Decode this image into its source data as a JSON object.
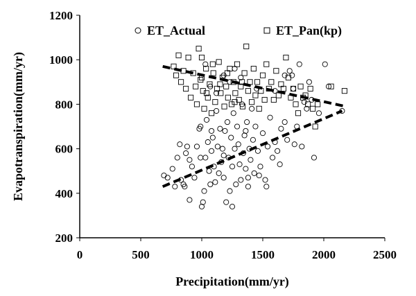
{
  "chart_data": {
    "type": "scatter",
    "title": "",
    "xlabel": "Precipitation(mm/yr)",
    "ylabel": "Evapotranspiration(mm/yr)",
    "xlim": [
      0,
      2500
    ],
    "ylim": [
      200,
      1200
    ],
    "x_ticks": [
      "0",
      "500",
      "1000",
      "1500",
      "2000",
      "2500"
    ],
    "y_ticks": [
      "200",
      "400",
      "600",
      "800",
      "1000",
      "1200"
    ],
    "grid": false,
    "legend_position": "top",
    "series": [
      {
        "name": "ET_Actual",
        "marker": "circle",
        "trendline": [
          [
            680,
            430
          ],
          [
            2150,
            770
          ]
        ],
        "points": [
          [
            690,
            480
          ],
          [
            720,
            470
          ],
          [
            760,
            510
          ],
          [
            780,
            430
          ],
          [
            800,
            560
          ],
          [
            820,
            620
          ],
          [
            830,
            460
          ],
          [
            850,
            440
          ],
          [
            860,
            430
          ],
          [
            870,
            580
          ],
          [
            880,
            610
          ],
          [
            900,
            550
          ],
          [
            920,
            520
          ],
          [
            940,
            470
          ],
          [
            960,
            610
          ],
          [
            980,
            690
          ],
          [
            990,
            700
          ],
          [
            1000,
            340
          ],
          [
            1010,
            360
          ],
          [
            1020,
            410
          ],
          [
            1030,
            560
          ],
          [
            1040,
            730
          ],
          [
            1050,
            630
          ],
          [
            1060,
            500
          ],
          [
            1070,
            440
          ],
          [
            1080,
            590
          ],
          [
            1090,
            650
          ],
          [
            1100,
            520
          ],
          [
            1110,
            450
          ],
          [
            1120,
            770
          ],
          [
            1130,
            610
          ],
          [
            1140,
            490
          ],
          [
            1150,
            690
          ],
          [
            1160,
            540
          ],
          [
            1170,
            600
          ],
          [
            1180,
            470
          ],
          [
            1190,
            680
          ],
          [
            1200,
            360
          ],
          [
            1210,
            720
          ],
          [
            1220,
            560
          ],
          [
            1230,
            410
          ],
          [
            1240,
            650
          ],
          [
            1250,
            520
          ],
          [
            1260,
            760
          ],
          [
            1270,
            600
          ],
          [
            1280,
            440
          ],
          [
            1290,
            700
          ],
          [
            1300,
            620
          ],
          [
            1310,
            530
          ],
          [
            1320,
            460
          ],
          [
            1330,
            800
          ],
          [
            1340,
            580
          ],
          [
            1350,
            660
          ],
          [
            1360,
            510
          ],
          [
            1370,
            720
          ],
          [
            1380,
            470
          ],
          [
            1390,
            600
          ],
          [
            1400,
            550
          ],
          [
            1410,
            780
          ],
          [
            1420,
            640
          ],
          [
            1430,
            490
          ],
          [
            1440,
            700
          ],
          [
            1460,
            590
          ],
          [
            1480,
            520
          ],
          [
            1500,
            670
          ],
          [
            1520,
            460
          ],
          [
            1540,
            610
          ],
          [
            1560,
            740
          ],
          [
            1580,
            560
          ],
          [
            1600,
            630
          ],
          [
            1620,
            590
          ],
          [
            1650,
            690
          ],
          [
            1680,
            720
          ],
          [
            1700,
            640
          ],
          [
            1720,
            950
          ],
          [
            1740,
            930
          ],
          [
            1760,
            620
          ],
          [
            1780,
            700
          ],
          [
            1800,
            980
          ],
          [
            1820,
            610
          ],
          [
            1840,
            810
          ],
          [
            1860,
            780
          ],
          [
            1880,
            900
          ],
          [
            1900,
            820
          ],
          [
            1920,
            560
          ],
          [
            1960,
            760
          ],
          [
            2010,
            980
          ],
          [
            2040,
            880
          ],
          [
            2150,
            770
          ],
          [
            1030,
            980
          ],
          [
            1070,
            880
          ],
          [
            1120,
            850
          ],
          [
            1180,
            930
          ],
          [
            1230,
            900
          ],
          [
            1270,
            960
          ],
          [
            1320,
            920
          ],
          [
            1450,
            870
          ],
          [
            1600,
            860
          ],
          [
            1680,
            930
          ],
          [
            1750,
            870
          ],
          [
            900,
            370
          ],
          [
            1250,
            340
          ],
          [
            1380,
            430
          ],
          [
            1470,
            480
          ],
          [
            1530,
            430
          ],
          [
            1180,
            570
          ],
          [
            1080,
            680
          ],
          [
            990,
            560
          ],
          [
            1360,
            680
          ],
          [
            1640,
            530
          ]
        ]
      },
      {
        "name": "ET_Pan(kp)",
        "marker": "square",
        "trendline": [
          [
            680,
            970
          ],
          [
            2180,
            790
          ]
        ],
        "points": [
          [
            770,
            970
          ],
          [
            790,
            930
          ],
          [
            810,
            1020
          ],
          [
            830,
            900
          ],
          [
            850,
            950
          ],
          [
            870,
            870
          ],
          [
            890,
            1010
          ],
          [
            910,
            830
          ],
          [
            930,
            940
          ],
          [
            950,
            880
          ],
          [
            960,
            800
          ],
          [
            975,
            1050
          ],
          [
            990,
            910
          ],
          [
            1000,
            1010
          ],
          [
            1010,
            860
          ],
          [
            1020,
            780
          ],
          [
            1035,
            960
          ],
          [
            1050,
            830
          ],
          [
            1065,
            890
          ],
          [
            1080,
            760
          ],
          [
            1095,
            940
          ],
          [
            1110,
            810
          ],
          [
            1125,
            870
          ],
          [
            1140,
            990
          ],
          [
            1155,
            850
          ],
          [
            1170,
            920
          ],
          [
            1185,
            790
          ],
          [
            1200,
            880
          ],
          [
            1215,
            830
          ],
          [
            1230,
            960
          ],
          [
            1245,
            800
          ],
          [
            1260,
            900
          ],
          [
            1275,
            850
          ],
          [
            1290,
            980
          ],
          [
            1305,
            820
          ],
          [
            1320,
            880
          ],
          [
            1335,
            790
          ],
          [
            1350,
            940
          ],
          [
            1365,
            1060
          ],
          [
            1380,
            860
          ],
          [
            1395,
            900
          ],
          [
            1410,
            810
          ],
          [
            1425,
            960
          ],
          [
            1440,
            840
          ],
          [
            1455,
            900
          ],
          [
            1470,
            780
          ],
          [
            1485,
            860
          ],
          [
            1500,
            930
          ],
          [
            1515,
            820
          ],
          [
            1530,
            980
          ],
          [
            1550,
            870
          ],
          [
            1570,
            900
          ],
          [
            1590,
            820
          ],
          [
            1610,
            950
          ],
          [
            1630,
            840
          ],
          [
            1650,
            890
          ],
          [
            1670,
            870
          ],
          [
            1690,
            1010
          ],
          [
            1710,
            920
          ],
          [
            1730,
            830
          ],
          [
            1750,
            870
          ],
          [
            1770,
            800
          ],
          [
            1790,
            760
          ],
          [
            1810,
            880
          ],
          [
            1830,
            830
          ],
          [
            1850,
            840
          ],
          [
            1870,
            800
          ],
          [
            1890,
            870
          ],
          [
            1910,
            780
          ],
          [
            1930,
            700
          ],
          [
            1950,
            800
          ],
          [
            2060,
            880
          ],
          [
            2170,
            860
          ],
          [
            1000,
            920
          ],
          [
            1040,
            850
          ],
          [
            1090,
            980
          ],
          [
            1150,
            890
          ],
          [
            1210,
            940
          ],
          [
            1270,
            810
          ],
          [
            1330,
            900
          ]
        ]
      }
    ]
  }
}
